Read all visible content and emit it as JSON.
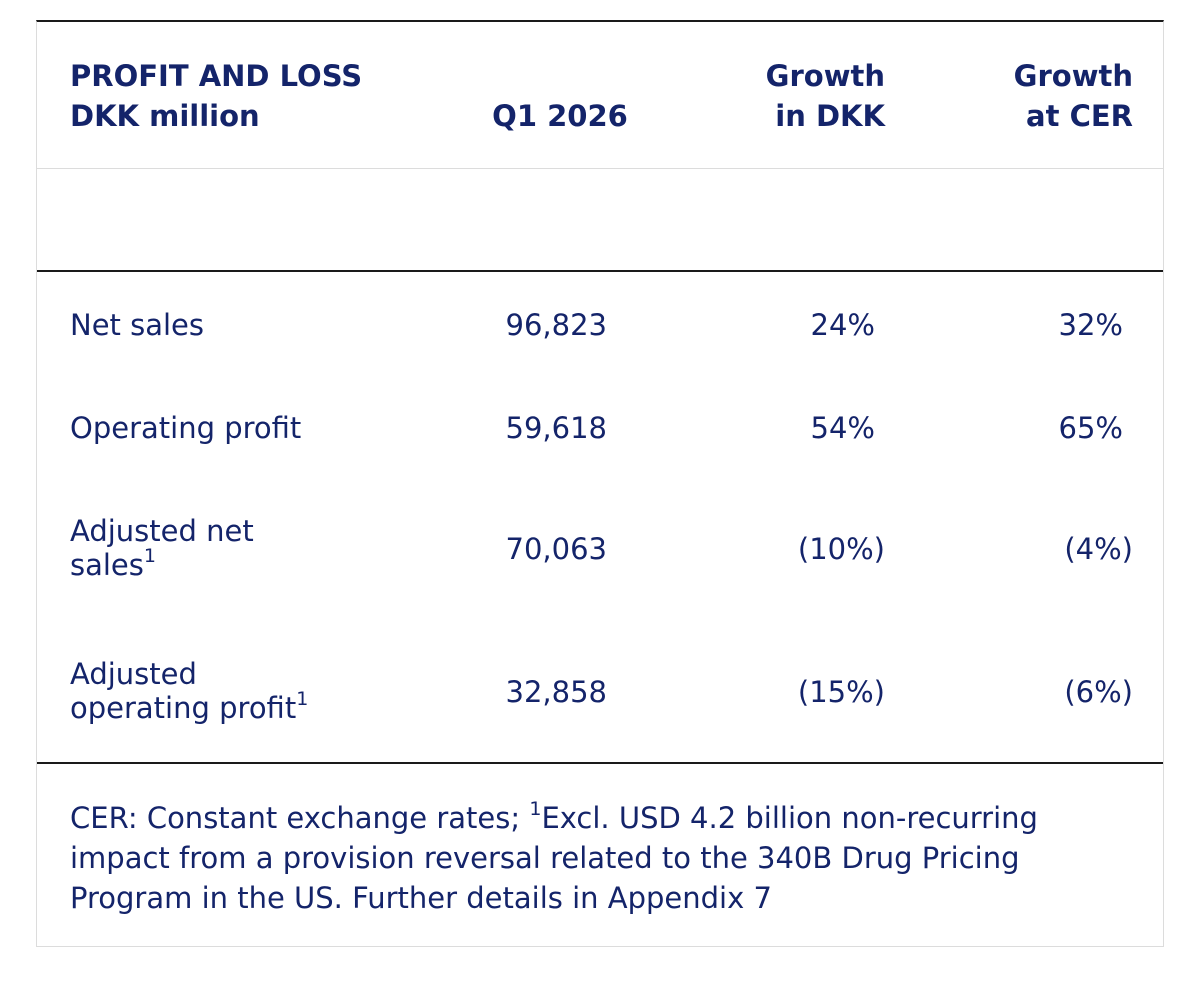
{
  "header": {
    "title_line1": "PROFIT AND LOSS",
    "title_line2": "DKK million",
    "col_q1": "Q1 2026",
    "col_growth_dkk_line1": "Growth",
    "col_growth_dkk_line2": "in DKK",
    "col_growth_cer_line1": "Growth",
    "col_growth_cer_line2": "at CER"
  },
  "rows": [
    {
      "label": "Net sales",
      "sup": "",
      "q1": "96,823",
      "growth_dkk": "24%",
      "growth_cer": "32%"
    },
    {
      "label": "Operating profit",
      "sup": "",
      "q1": "59,618",
      "growth_dkk": "54%",
      "growth_cer": "65%"
    },
    {
      "label_line1": "Adjusted net",
      "label_line2": "sales",
      "sup": "1",
      "q1": "70,063",
      "growth_dkk": "(10%)",
      "growth_cer": "(4%)"
    },
    {
      "label_line1": "Adjusted",
      "label_line2": "operating profit",
      "sup": "1",
      "q1": "32,858",
      "growth_dkk": "(15%)",
      "growth_cer": "(6%)"
    }
  ],
  "footnote": {
    "part1": "CER: Constant exchange rates; ",
    "sup": "1",
    "line1_rest": "Excl. USD 4.2 billion non-recurring",
    "line2": "impact from a provision reversal related to the 340B Drug Pricing",
    "line3": "Program in the US. Further details in Appendix 7"
  },
  "colors": {
    "text": "#14246a",
    "rule": "#1a1a1a",
    "border": "#dcdcdc"
  }
}
